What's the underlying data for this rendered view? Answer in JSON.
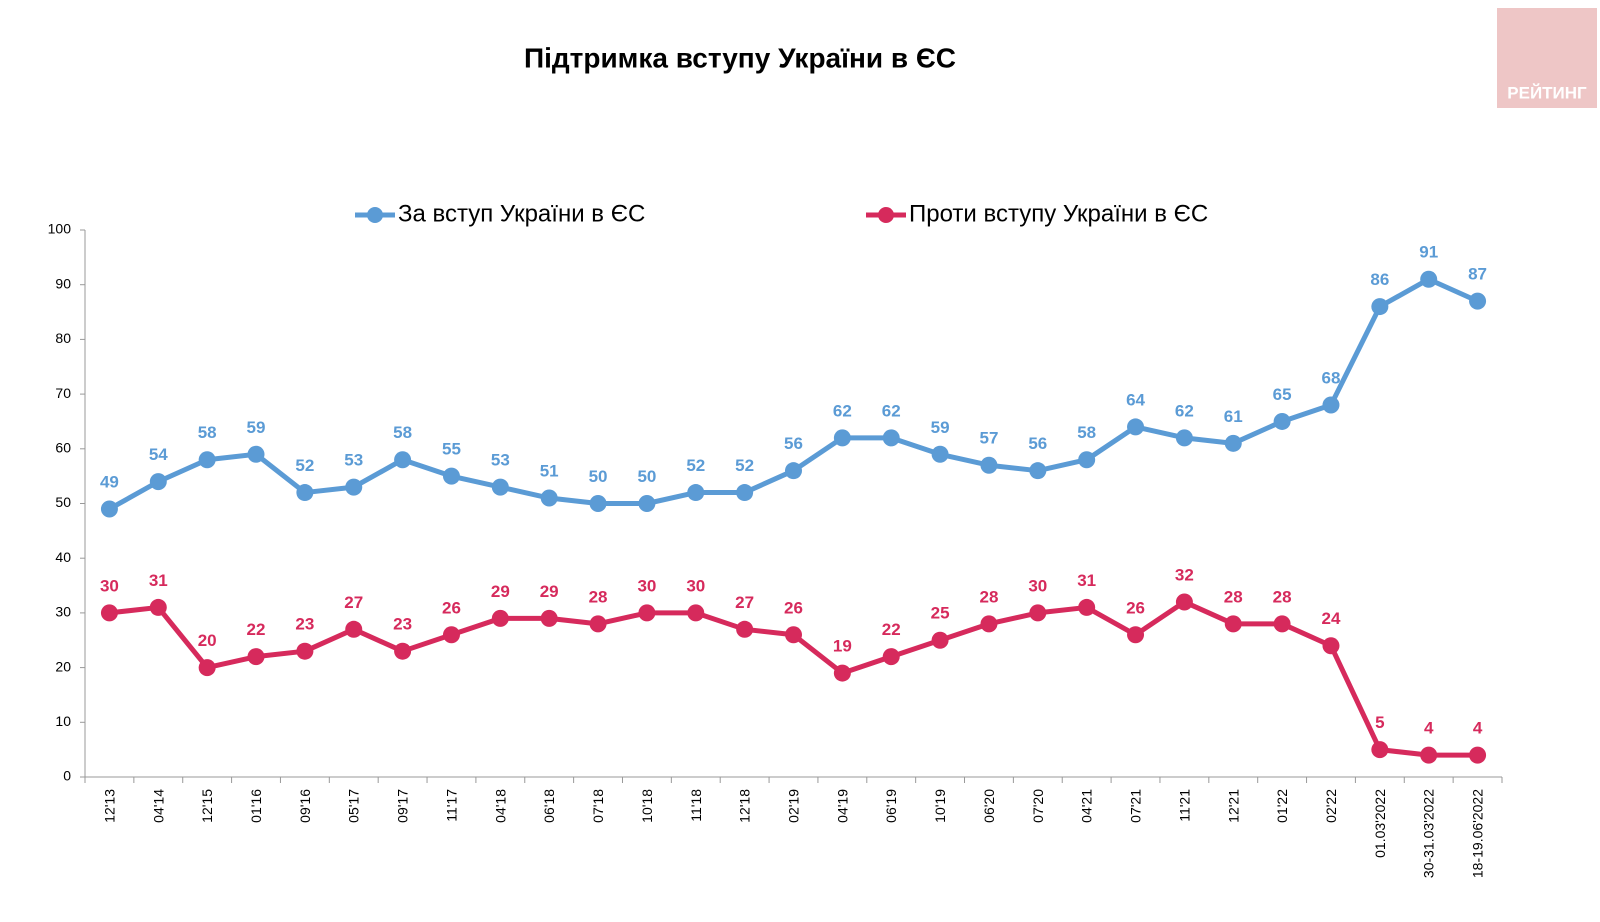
{
  "chart_data": {
    "type": "line",
    "title": "Підтримка вступу України в ЄС",
    "logo": "РЕЙТИНГ",
    "categories": [
      "12'13",
      "04'14",
      "12'15",
      "01'16",
      "09'16",
      "05'17",
      "09'17",
      "11'17",
      "04'18",
      "06'18",
      "07'18",
      "10'18",
      "11'18",
      "12'18",
      "02'19",
      "04'19",
      "06'19",
      "10'19",
      "06'20",
      "07'20",
      "04'21",
      "07'21",
      "11'21",
      "12'21",
      "01'22",
      "02'22",
      "01.03'2022",
      "30-31.03'2022",
      "18-19.06'2022"
    ],
    "series": [
      {
        "name": "За вступ України в ЄС",
        "color": "#5b9bd5",
        "values": [
          49,
          54,
          58,
          59,
          52,
          53,
          58,
          55,
          53,
          51,
          50,
          50,
          52,
          52,
          56,
          62,
          62,
          59,
          57,
          56,
          58,
          64,
          62,
          61,
          65,
          68,
          86,
          91,
          87
        ]
      },
      {
        "name": "Проти вступу України в ЄС",
        "color": "#d62a5c",
        "values": [
          30,
          31,
          20,
          22,
          23,
          27,
          23,
          26,
          29,
          29,
          28,
          30,
          30,
          27,
          26,
          19,
          22,
          25,
          28,
          30,
          31,
          26,
          32,
          28,
          28,
          24,
          5,
          4,
          4
        ]
      }
    ],
    "ylim": [
      0,
      100
    ],
    "yticks": [
      0,
      10,
      20,
      30,
      40,
      50,
      60,
      70,
      80,
      90,
      100
    ],
    "grid": false
  }
}
